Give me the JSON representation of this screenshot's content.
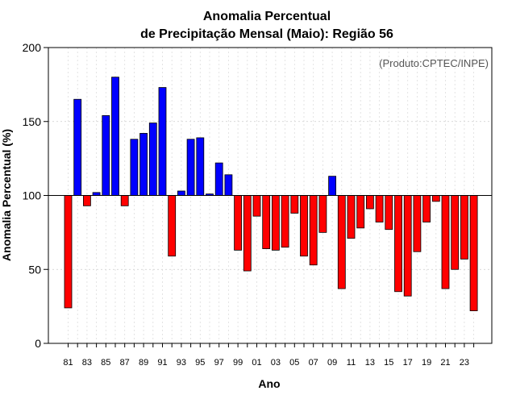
{
  "chart_data": {
    "type": "bar",
    "title_line1": "Anomalia Percentual",
    "title_line2": "de Precipitação Mensal (Maio): Região 56",
    "xlabel": "Ano",
    "ylabel": "Anomalia Percentual (%)",
    "credit": "(Produto:CPTEC/INPE)",
    "baseline": 100,
    "ylim": [
      0,
      200
    ],
    "yticks": [
      0,
      50,
      100,
      150,
      200
    ],
    "above_color": "#0000ff",
    "below_color": "#ff0000",
    "categories": [
      "81",
      "82",
      "83",
      "84",
      "85",
      "86",
      "87",
      "88",
      "89",
      "90",
      "91",
      "92",
      "93",
      "94",
      "95",
      "96",
      "97",
      "98",
      "99",
      "00",
      "01",
      "02",
      "03",
      "04",
      "05",
      "06",
      "07",
      "08",
      "09",
      "10",
      "11",
      "12",
      "13",
      "14",
      "15",
      "16",
      "17",
      "18",
      "19",
      "20",
      "21",
      "22",
      "23",
      "24"
    ],
    "xtick_labels": [
      "81",
      "83",
      "85",
      "87",
      "89",
      "91",
      "93",
      "95",
      "97",
      "99",
      "01",
      "03",
      "05",
      "07",
      "09",
      "11",
      "13",
      "15",
      "17",
      "19",
      "21",
      "23"
    ],
    "values": [
      24,
      165,
      93,
      102,
      154,
      180,
      93,
      138,
      142,
      149,
      173,
      59,
      103,
      138,
      139,
      101,
      122,
      114,
      63,
      49,
      86,
      64,
      63,
      65,
      88,
      59,
      53,
      75,
      113,
      37,
      71,
      78,
      91,
      82,
      77,
      35,
      32,
      62,
      82,
      96,
      37,
      50,
      57,
      22
    ]
  }
}
